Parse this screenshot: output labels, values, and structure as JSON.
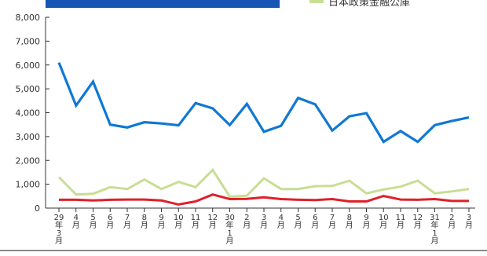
{
  "chart_data": {
    "type": "line",
    "title": "",
    "xlabel": "",
    "ylabel": "",
    "ylim": [
      0,
      8000
    ],
    "yticks": [
      "8,000",
      "7,000",
      "6,000",
      "5,000",
      "4,000",
      "3,000",
      "2,000",
      "1,000",
      "0"
    ],
    "ytick_values": [
      8000,
      7000,
      6000,
      5000,
      4000,
      3000,
      2000,
      1000,
      0
    ],
    "categories": [
      [
        "29",
        "年",
        "3",
        "月"
      ],
      [
        "4",
        "月"
      ],
      [
        "5",
        "月"
      ],
      [
        "6",
        "月"
      ],
      [
        "7",
        "月"
      ],
      [
        "8",
        "月"
      ],
      [
        "9",
        "月"
      ],
      [
        "10",
        "月"
      ],
      [
        "11",
        "月"
      ],
      [
        "12",
        "月"
      ],
      [
        "30",
        "年",
        "1",
        "月"
      ],
      [
        "2",
        "月"
      ],
      [
        "3",
        "月"
      ],
      [
        "4",
        "月"
      ],
      [
        "5",
        "月"
      ],
      [
        "6",
        "月"
      ],
      [
        "7",
        "月"
      ],
      [
        "8",
        "月"
      ],
      [
        "9",
        "月"
      ],
      [
        "10",
        "月"
      ],
      [
        "11",
        "月"
      ],
      [
        "12",
        "月"
      ],
      [
        "31",
        "年",
        "1",
        "月"
      ],
      [
        "2",
        "月"
      ],
      [
        "3",
        "月"
      ]
    ],
    "grid": false,
    "legend_position": "top-right",
    "series": [
      {
        "color": "#0f78d4",
        "values": [
          6100,
          4300,
          5300,
          3500,
          3380,
          3600,
          3550,
          3470,
          4400,
          4180,
          3480,
          4370,
          3200,
          3450,
          4620,
          4350,
          3250,
          3850,
          3980,
          2780,
          3230,
          2780,
          3480,
          3650,
          3800
        ]
      },
      {
        "name": "日本政策金融公庫",
        "color": "#c8de94",
        "values": [
          1300,
          570,
          600,
          880,
          800,
          1200,
          800,
          1100,
          880,
          1600,
          480,
          520,
          1250,
          800,
          800,
          920,
          930,
          1150,
          620,
          780,
          900,
          1150,
          620,
          700,
          800
        ]
      },
      {
        "color": "#e0202a",
        "values": [
          350,
          350,
          320,
          350,
          360,
          360,
          320,
          150,
          280,
          570,
          380,
          390,
          450,
          380,
          350,
          340,
          380,
          280,
          280,
          510,
          360,
          350,
          380,
          300,
          300
        ]
      }
    ]
  },
  "legend": {
    "label": "日本政策金融公庫",
    "color": "#c8de94"
  }
}
